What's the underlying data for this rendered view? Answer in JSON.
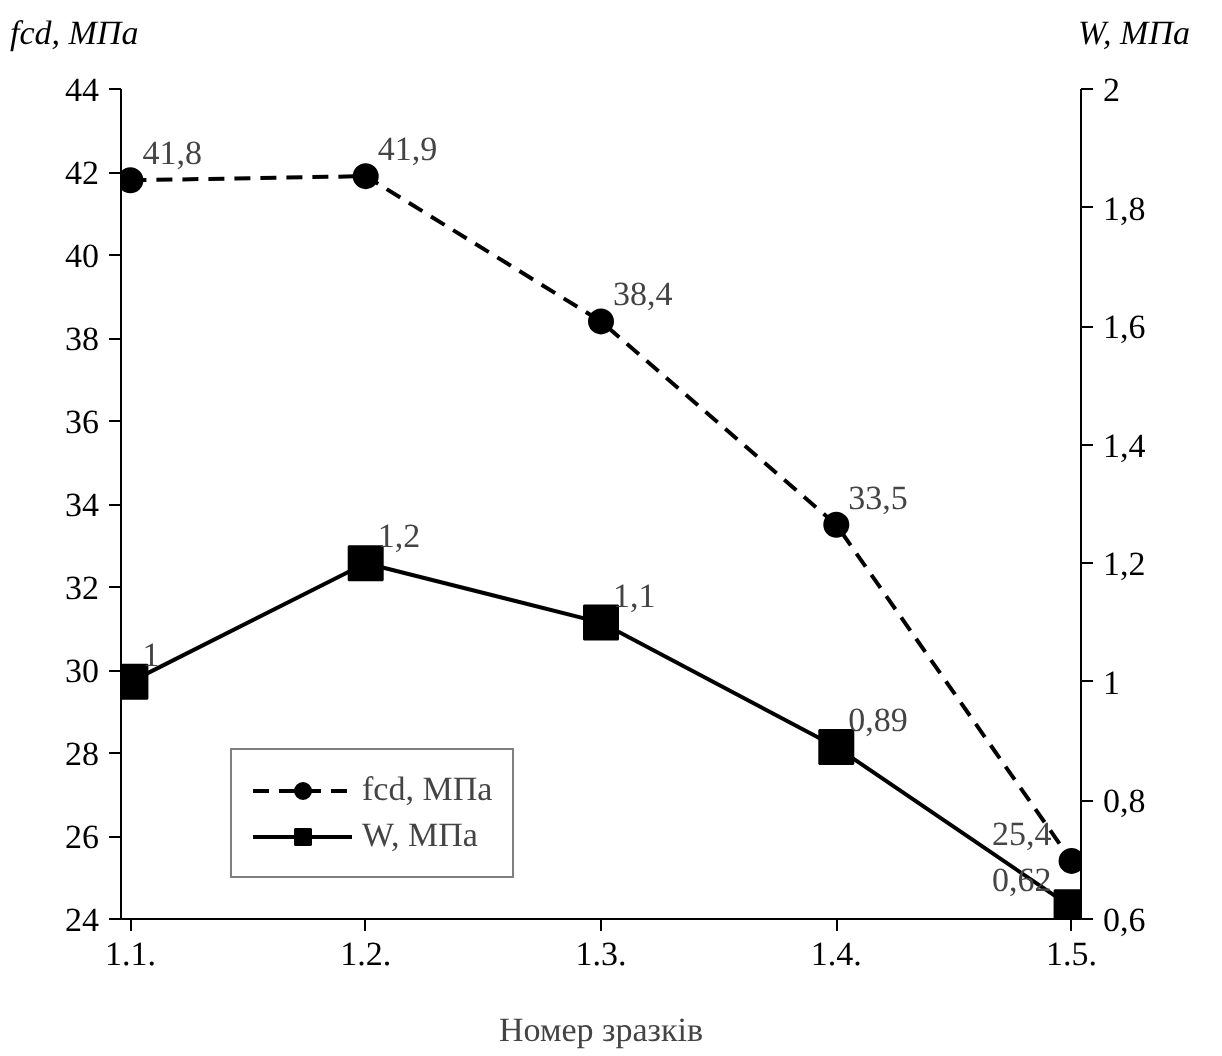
{
  "chart_data": {
    "type": "line",
    "xlabel": "Номер зразків",
    "ylabel": "fcd, МПа",
    "y2label": "W, МПа",
    "categories": [
      "1.1.",
      "1.2.",
      "1.3.",
      "1.4.",
      "1.5."
    ],
    "ylim": [
      24,
      44
    ],
    "yticks": [
      24,
      26,
      28,
      30,
      32,
      34,
      36,
      38,
      40,
      42,
      44
    ],
    "y2lim": [
      0.6,
      2
    ],
    "y2ticks": [
      {
        "value": 0.6,
        "label": "0,6"
      },
      {
        "value": 0.8,
        "label": "0,8"
      },
      {
        "value": 1,
        "label": "1"
      },
      {
        "value": 1.2,
        "label": "1,2"
      },
      {
        "value": 1.4,
        "label": "1,4"
      },
      {
        "value": 1.6,
        "label": "1,6"
      },
      {
        "value": 1.8,
        "label": "1,8"
      },
      {
        "value": 2,
        "label": "2"
      }
    ],
    "series": [
      {
        "name": "fcd, МПа",
        "color": "#000000",
        "values": [
          41.8,
          41.9,
          38.4,
          33.5,
          25.4
        ],
        "value_labels": [
          "41,8",
          "41,9",
          "38,4",
          "33,5",
          "25,4"
        ],
        "marker": "circle",
        "line_style": "dashed"
      },
      {
        "name": "W, МПа",
        "color": "#000000",
        "axis": "y2",
        "values": [
          1,
          1.2,
          1.1,
          0.89,
          0.62
        ],
        "value_labels": [
          "1",
          "1,2",
          "1,1",
          "0,89",
          "0,62"
        ],
        "marker": "square",
        "line_style": "solid"
      }
    ],
    "grid": false,
    "legend": "bottom left"
  }
}
